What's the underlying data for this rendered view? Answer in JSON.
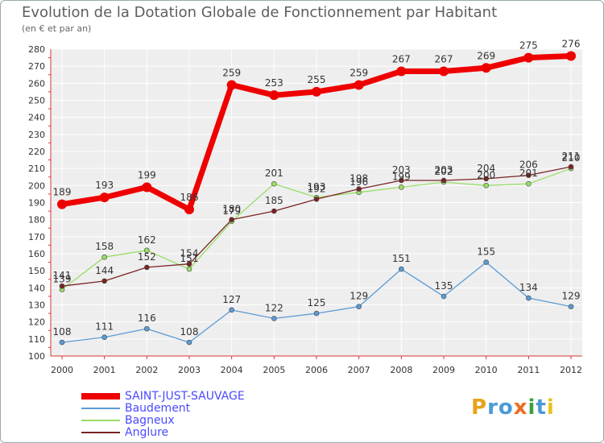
{
  "header": {
    "title": "Evolution de la Dotation Globale de Fonctionnement par Habitant",
    "subtitle": "(en € et par an)"
  },
  "logo": {
    "text": "Proxiti"
  },
  "chart_data": {
    "type": "line",
    "title": "Evolution de la Dotation Globale de Fonctionnement par Habitant",
    "subtitle": "(en € et par an)",
    "x": [
      "2000",
      "2001",
      "2002",
      "2003",
      "2004",
      "2005",
      "2006",
      "2007",
      "2008",
      "2009",
      "2010",
      "2011",
      "2012"
    ],
    "ylim": [
      100,
      280
    ],
    "yticks": [
      100,
      110,
      120,
      130,
      140,
      150,
      160,
      170,
      180,
      190,
      200,
      210,
      220,
      230,
      240,
      250,
      260,
      270,
      280
    ],
    "grid": true,
    "legend_position": "bottom-left",
    "series": [
      {
        "name": "SAINT-JUST-SAUVAGE",
        "color": "#ee0000",
        "values": [
          189,
          193,
          199,
          186,
          259,
          253,
          255,
          259,
          267,
          267,
          269,
          275,
          276
        ]
      },
      {
        "name": "Baudement",
        "color": "#5b9bd5",
        "values": [
          108,
          111,
          116,
          108,
          127,
          122,
          125,
          129,
          151,
          135,
          155,
          134,
          129
        ]
      },
      {
        "name": "Bagneux",
        "color": "#99dd66",
        "values": [
          139,
          158,
          162,
          151,
          179,
          201,
          193,
          196,
          199,
          202,
          200,
          201,
          210
        ]
      },
      {
        "name": "Anglure",
        "color": "#7a2424",
        "values": [
          141,
          144,
          152,
          154,
          180,
          185,
          192,
          198,
          203,
          203,
          204,
          206,
          211
        ]
      }
    ]
  }
}
